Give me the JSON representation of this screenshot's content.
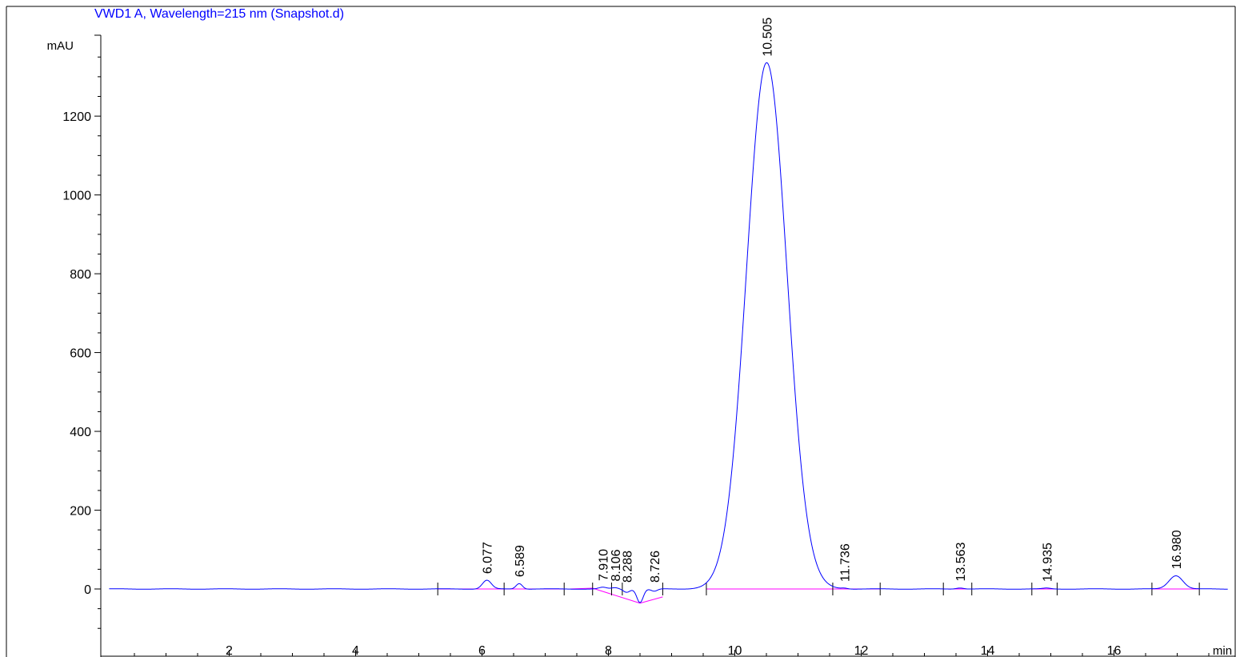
{
  "chart_data": {
    "type": "line",
    "title": "VWD1 A, Wavelength=215 nm (Snapshot.d)",
    "ylabel": "mAU",
    "xlabel": "min",
    "xlim": [
      0.1,
      17.8
    ],
    "ylim": [
      -100,
      1400
    ],
    "x_ticks": [
      2,
      4,
      6,
      8,
      10,
      12,
      14,
      16
    ],
    "y_ticks": [
      0,
      200,
      400,
      600,
      800,
      1000,
      1200
    ],
    "grid": false,
    "colors": {
      "trace": "#0000ff",
      "baseline": "#ff00ff",
      "title": "#0000ff",
      "axis": "#000000"
    },
    "baseline_noise": 1.5,
    "peaks": [
      {
        "rt": 6.077,
        "label": "6.077",
        "height": 22,
        "width": 0.07
      },
      {
        "rt": 6.589,
        "label": "6.589",
        "height": 14,
        "width": 0.05
      },
      {
        "rt": 7.91,
        "label": "7.910",
        "height": 4,
        "width": 0.06
      },
      {
        "rt": 8.106,
        "label": "8.106",
        "height": 3,
        "width": 0.05
      },
      {
        "rt": 8.288,
        "label": "8.288",
        "height": -8,
        "width": 0.05
      },
      {
        "rt": 8.5,
        "label": "",
        "height": -34,
        "width": 0.05
      },
      {
        "rt": 8.726,
        "label": "8.726",
        "height": -6,
        "width": 0.05
      },
      {
        "rt": 10.505,
        "label": "10.505",
        "height": 1335,
        "width": 0.32
      },
      {
        "rt": 11.736,
        "label": "11.736",
        "height": 2,
        "width": 0.05
      },
      {
        "rt": 13.563,
        "label": "13.563",
        "height": 3,
        "width": 0.06
      },
      {
        "rt": 14.935,
        "label": "14.935",
        "height": 2,
        "width": 0.06
      },
      {
        "rt": 16.98,
        "label": "16.980",
        "height": 34,
        "width": 0.11
      }
    ],
    "integration_baselines": [
      {
        "x": [
          5.3,
          6.35
        ],
        "y": [
          0,
          0
        ]
      },
      {
        "x": [
          6.35,
          7.3
        ],
        "y": [
          0,
          0
        ]
      },
      {
        "x": [
          7.4,
          7.75
        ],
        "y": [
          0,
          2
        ]
      },
      {
        "x": [
          7.75,
          8.5
        ],
        "y": [
          2,
          -36
        ]
      },
      {
        "x": [
          8.5,
          8.86
        ],
        "y": [
          -36,
          -20
        ]
      },
      {
        "x": [
          9.55,
          11.55
        ],
        "y": [
          0,
          0
        ]
      },
      {
        "x": [
          11.55,
          12.3
        ],
        "y": [
          0,
          0
        ]
      },
      {
        "x": [
          13.3,
          13.75
        ],
        "y": [
          0,
          0
        ]
      },
      {
        "x": [
          14.7,
          15.1
        ],
        "y": [
          0,
          0
        ]
      },
      {
        "x": [
          16.6,
          17.35
        ],
        "y": [
          0,
          0
        ]
      }
    ],
    "integration_ticks": [
      5.3,
      6.35,
      7.3,
      7.75,
      8.05,
      8.22,
      8.86,
      9.55,
      11.55,
      12.3,
      13.3,
      13.75,
      14.7,
      15.1,
      16.6,
      17.35
    ]
  }
}
